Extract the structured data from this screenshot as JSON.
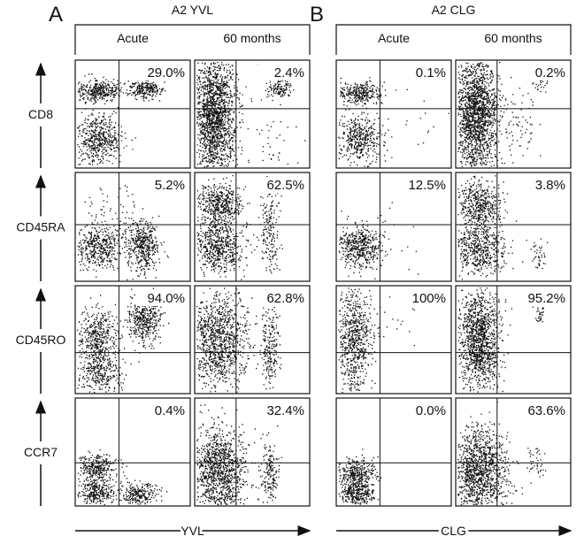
{
  "rows": [
    "CD8",
    "CD45RA",
    "CD45RO",
    "CCR7"
  ],
  "panels": [
    {
      "letter": "A",
      "title": "A2 YVL",
      "columns": [
        "Acute",
        "60 months"
      ],
      "x_label": "YVL",
      "percentages": [
        [
          "29.0%",
          "2.4%"
        ],
        [
          "5.2%",
          "62.5%"
        ],
        [
          "94.0%",
          "62.8%"
        ],
        [
          "0.4%",
          "32.4%"
        ]
      ]
    },
    {
      "letter": "B",
      "title": "A2 CLG",
      "columns": [
        "Acute",
        "60 months"
      ],
      "x_label": "CLG",
      "percentages": [
        [
          "0.1%",
          "0.2%"
        ],
        [
          "12.5%",
          "3.8%"
        ],
        [
          "100%",
          "95.2%"
        ],
        [
          "0.0%",
          "63.6%"
        ]
      ]
    }
  ]
}
